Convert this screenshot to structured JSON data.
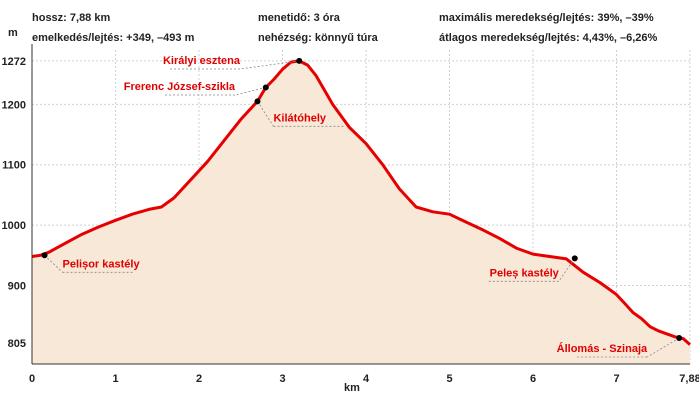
{
  "info": {
    "length": "hossz: 7,88 km",
    "elevation": "emelkedés/lejtés: +349, –493 m",
    "time": "menetidő: 3 óra",
    "difficulty": "nehézség: könnyű túra",
    "max_grade": "maximális meredekség/lejtés: 39%, –39%",
    "avg_grade": "átlagos meredekség/lejtés: 4,43%, –6,26%"
  },
  "colors": {
    "line": "#e60000",
    "fill": "#f8e8d8",
    "grid": "#d0d0d0",
    "poi_text": "#e00000",
    "marker": "#000000"
  },
  "chart_data": {
    "type": "area",
    "xlabel": "km",
    "ylabel": "m",
    "xlim": [
      0,
      7.88
    ],
    "ylim": [
      770,
      1290
    ],
    "grid": true,
    "x_ticks": [
      "0",
      "1",
      "2",
      "3",
      "4",
      "5",
      "6",
      "7",
      "7,88"
    ],
    "x_tick_values": [
      0,
      1,
      2,
      3,
      4,
      5,
      6,
      7,
      7.88
    ],
    "y_ticks": [
      "805",
      "900",
      "1000",
      "1100",
      "1200",
      "1272"
    ],
    "y_tick_values": [
      805,
      900,
      1000,
      1100,
      1200,
      1272
    ],
    "series": [
      {
        "x": [
          0,
          0.1,
          0.2,
          0.4,
          0.6,
          0.8,
          1.0,
          1.2,
          1.4,
          1.55,
          1.7,
          1.9,
          2.1,
          2.3,
          2.5,
          2.7,
          2.8,
          2.9,
          3.0,
          3.1,
          3.2,
          3.3,
          3.4,
          3.6,
          3.8,
          4.0,
          4.2,
          4.4,
          4.6,
          4.8,
          5.0,
          5.2,
          5.4,
          5.6,
          5.8,
          6.0,
          6.2,
          6.4,
          6.6,
          6.8,
          6.9,
          7.0,
          7.1,
          7.2,
          7.3,
          7.4,
          7.5,
          7.6,
          7.7,
          7.8,
          7.88
        ],
        "y": [
          948,
          950,
          955,
          970,
          985,
          997,
          1008,
          1018,
          1026,
          1030,
          1045,
          1075,
          1105,
          1140,
          1175,
          1205,
          1228,
          1242,
          1258,
          1270,
          1272,
          1265,
          1248,
          1200,
          1162,
          1135,
          1100,
          1060,
          1030,
          1022,
          1018,
          1005,
          992,
          978,
          962,
          952,
          948,
          944,
          922,
          905,
          895,
          885,
          870,
          855,
          845,
          832,
          825,
          820,
          815,
          812,
          802
        ]
      }
    ],
    "points": [
      {
        "label": "Pelișor kastély",
        "x": 0.15,
        "y": 950
      },
      {
        "label": "Frerenc József-szikla",
        "x": 2.8,
        "y": 1228
      },
      {
        "label": "Királyi esztena",
        "x": 3.2,
        "y": 1272
      },
      {
        "label": "Kilátóhely",
        "x": 2.7,
        "y": 1205
      },
      {
        "label": "Peleș kastély",
        "x": 6.5,
        "y": 945
      },
      {
        "label": "Állomás - Szinaja",
        "x": 7.75,
        "y": 813
      }
    ]
  }
}
